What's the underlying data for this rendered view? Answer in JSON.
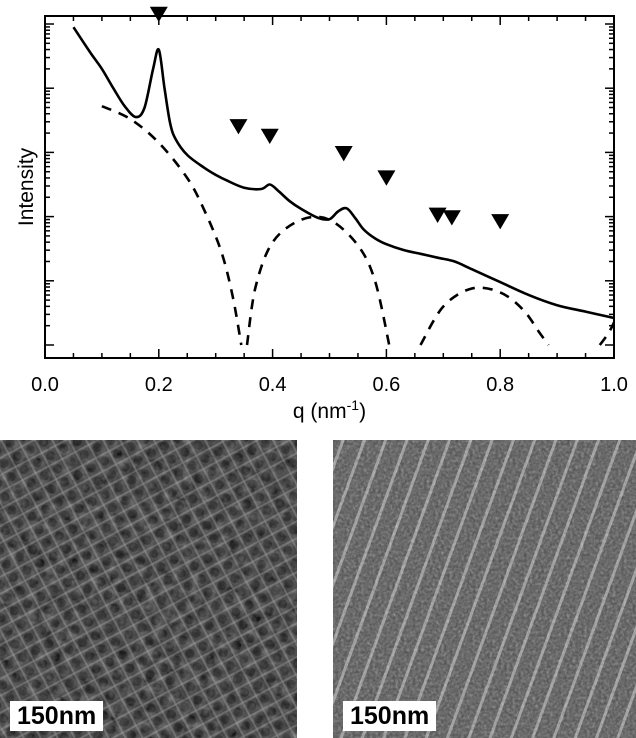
{
  "chart_data": {
    "type": "line",
    "title": "",
    "xlabel": "q (nm",
    "xlabel_sup": "-1",
    "xlabel_close": ")",
    "ylabel": "Intensity",
    "xlim": [
      0.0,
      1.0
    ],
    "yscale": "log",
    "ylim_decades": [
      0,
      5
    ],
    "x_ticks": [
      "0.0",
      "0.2",
      "0.4",
      "0.6",
      "0.8",
      "1.0"
    ],
    "x_tick_values": [
      0.0,
      0.2,
      0.4,
      0.6,
      0.8,
      1.0
    ],
    "grid": false,
    "legend": "none",
    "series": [
      {
        "style": "solid",
        "x": [
          0.05,
          0.08,
          0.1,
          0.12,
          0.14,
          0.16,
          0.175,
          0.19,
          0.2,
          0.21,
          0.22,
          0.23,
          0.25,
          0.28,
          0.3,
          0.32,
          0.35,
          0.38,
          0.395,
          0.41,
          0.43,
          0.45,
          0.48,
          0.5,
          0.515,
          0.53,
          0.545,
          0.56,
          0.58,
          0.6,
          0.63,
          0.66,
          0.69,
          0.72,
          0.75,
          0.8,
          0.85,
          0.9,
          0.95,
          1.0
        ],
        "y": [
          4.95,
          4.55,
          4.3,
          4.0,
          3.72,
          3.55,
          3.7,
          4.3,
          4.6,
          4.0,
          3.45,
          3.2,
          2.96,
          2.76,
          2.65,
          2.56,
          2.45,
          2.43,
          2.5,
          2.4,
          2.24,
          2.12,
          1.98,
          1.96,
          2.08,
          2.13,
          1.98,
          1.8,
          1.66,
          1.57,
          1.48,
          1.42,
          1.36,
          1.3,
          1.18,
          0.98,
          0.78,
          0.62,
          0.52,
          0.42
        ]
      },
      {
        "style": "dashed",
        "x": [
          0.1,
          0.15,
          0.2,
          0.25,
          0.28,
          0.31,
          0.33,
          0.345,
          0.355,
          0.37,
          0.4,
          0.45,
          0.5,
          0.55,
          0.58,
          0.605,
          0.66,
          0.7,
          0.75,
          0.8,
          0.84,
          0.87,
          0.885,
          0.975,
          0.99,
          1.0
        ],
        "y": [
          3.72,
          3.52,
          3.15,
          2.6,
          2.1,
          1.45,
          0.75,
          0.0,
          0.0,
          0.9,
          1.6,
          1.95,
          1.95,
          1.55,
          1.0,
          0.0,
          0.0,
          0.6,
          0.88,
          0.82,
          0.55,
          0.18,
          0.0,
          0.0,
          0.18,
          0.35
        ]
      }
    ],
    "markers": {
      "shape": "down-triangle",
      "x": [
        0.2,
        0.34,
        0.395,
        0.525,
        0.6,
        0.69,
        0.715,
        0.8
      ],
      "y": [
        5.15,
        3.4,
        3.25,
        2.98,
        2.6,
        2.02,
        1.98,
        1.92
      ]
    }
  },
  "images": {
    "left_scale": "150nm",
    "right_scale": "150nm"
  }
}
